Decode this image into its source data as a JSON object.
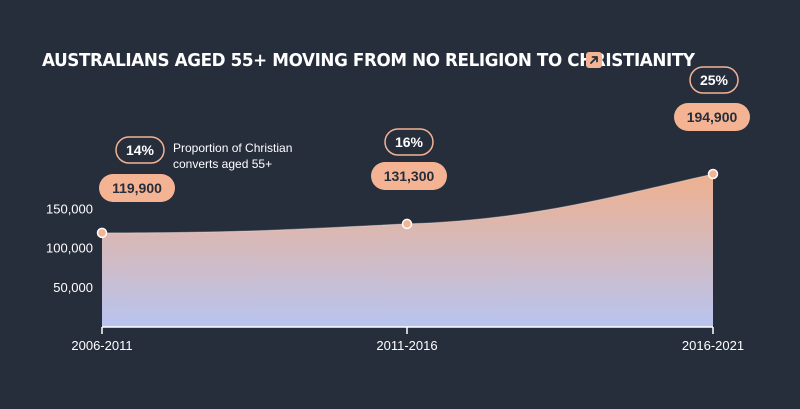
{
  "title": "AUSTRALIANS AGED 55+ MOVING FROM NO RELIGION TO CHRISTIANITY",
  "title_icon": "arrow-up-right-icon",
  "annotation": "Proportion of Christian converts aged 55+",
  "colors": {
    "background": "#262d3b",
    "accent": "#f4b393",
    "area_top": "#efb08e",
    "area_bottom": "#b8c4f0",
    "pill_text": "#262d3b"
  },
  "chart_data": {
    "type": "area",
    "categories": [
      "2006-2011",
      "2011-2016",
      "2016-2021"
    ],
    "values": [
      119900,
      131300,
      194900
    ],
    "value_labels": [
      "119,900",
      "131,300",
      "194,900"
    ],
    "percent_labels": [
      "14%",
      "16%",
      "25%"
    ],
    "yticks": [
      50000,
      100000,
      150000
    ],
    "ytick_labels": [
      "50,000",
      "100,000",
      "150,000"
    ],
    "ylim": [
      0,
      210000
    ],
    "grid": false,
    "xlabel": "",
    "ylabel": ""
  }
}
